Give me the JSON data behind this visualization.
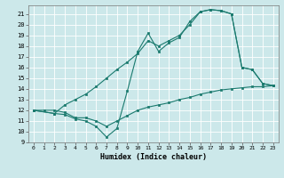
{
  "xlabel": "Humidex (Indice chaleur)",
  "background_color": "#cce8ea",
  "line_color": "#1a7a6e",
  "xlim": [
    -0.5,
    23.5
  ],
  "ylim": [
    9,
    21.8
  ],
  "xticks": [
    0,
    1,
    2,
    3,
    4,
    5,
    6,
    7,
    8,
    9,
    10,
    11,
    12,
    13,
    14,
    15,
    16,
    17,
    18,
    19,
    20,
    21,
    22,
    23
  ],
  "yticks": [
    9,
    10,
    11,
    12,
    13,
    14,
    15,
    16,
    17,
    18,
    19,
    20,
    21
  ],
  "line1_x": [
    0,
    1,
    2,
    3,
    4,
    5,
    6,
    7,
    8,
    9,
    10,
    11,
    12,
    13,
    14,
    15,
    16,
    17,
    18,
    19,
    20,
    21,
    22,
    23
  ],
  "line1_y": [
    12,
    12,
    12,
    11.8,
    11.3,
    11.3,
    11.0,
    10.5,
    11.0,
    11.5,
    12.0,
    12.3,
    12.5,
    12.7,
    13.0,
    13.2,
    13.5,
    13.7,
    13.9,
    14.0,
    14.1,
    14.2,
    14.2,
    14.3
  ],
  "line2_x": [
    0,
    2,
    3,
    4,
    5,
    6,
    7,
    8,
    9,
    10,
    11,
    12,
    13,
    14,
    15,
    16,
    17,
    18,
    19,
    20,
    21,
    22,
    23
  ],
  "line2_y": [
    12,
    11.7,
    11.6,
    11.2,
    11.0,
    10.5,
    9.5,
    10.3,
    13.8,
    17.5,
    19.2,
    17.5,
    18.3,
    18.8,
    20.3,
    21.2,
    21.4,
    21.3,
    21.0,
    16.0,
    15.8,
    14.5,
    14.3
  ],
  "line3_x": [
    0,
    2,
    3,
    4,
    5,
    6,
    7,
    8,
    9,
    10,
    11,
    12,
    13,
    14,
    15,
    16,
    17,
    18,
    19,
    20,
    21,
    22,
    23
  ],
  "line3_y": [
    12,
    11.7,
    12.5,
    13.0,
    13.5,
    14.2,
    15.0,
    15.8,
    16.5,
    17.3,
    18.5,
    18.0,
    18.5,
    19.0,
    20.0,
    21.2,
    21.4,
    21.3,
    21.0,
    16.0,
    15.8,
    14.5,
    14.3
  ]
}
